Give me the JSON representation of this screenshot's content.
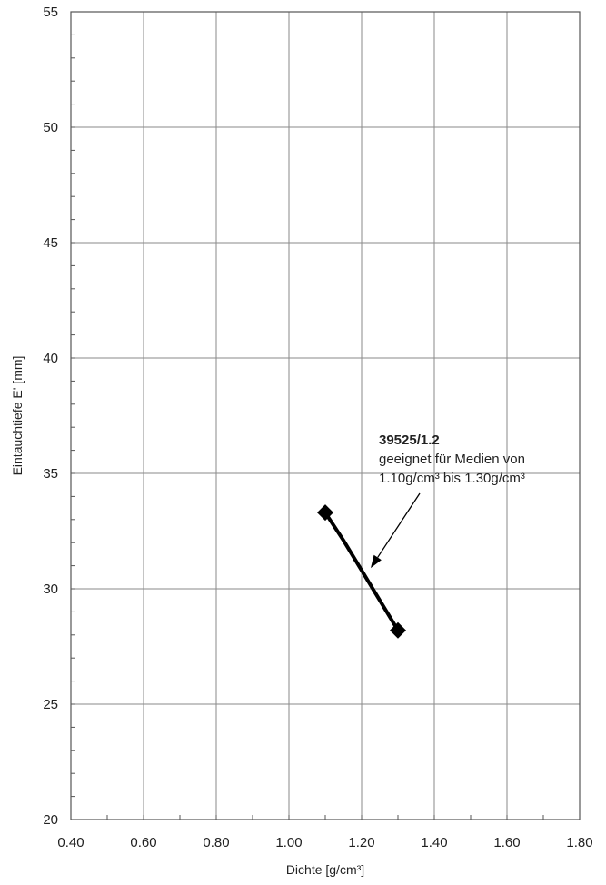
{
  "chart_data": {
    "type": "line",
    "xlabel": "Dichte [g/cm³]",
    "ylabel": "Eintauchtiefe E' [mm]",
    "xlim": [
      0.4,
      1.8
    ],
    "ylim": [
      20,
      55
    ],
    "x_ticks": [
      "0.40",
      "0.60",
      "0.80",
      "1.00",
      "1.20",
      "1.40",
      "1.60",
      "1.80"
    ],
    "y_ticks": [
      "20",
      "25",
      "30",
      "35",
      "40",
      "45",
      "50",
      "55"
    ],
    "grid": true,
    "series": [
      {
        "color": "#000000",
        "points": [
          {
            "x": 1.1,
            "y": 33.3
          },
          {
            "x": 1.15,
            "y": 32.1
          },
          {
            "x": 1.2,
            "y": 30.8
          },
          {
            "x": 1.25,
            "y": 29.5
          },
          {
            "x": 1.3,
            "y": 28.2
          }
        ],
        "markers": [
          {
            "x": 1.1,
            "y": 33.3
          },
          {
            "x": 1.3,
            "y": 28.2
          }
        ]
      }
    ],
    "annotation": {
      "title": "39525/1.2",
      "line1": "geeignet für Medien von",
      "line2": "1.10g/cm³ bis 1.30g/cm³",
      "arrow_target": {
        "x": 1.225,
        "y": 30.9
      }
    }
  }
}
